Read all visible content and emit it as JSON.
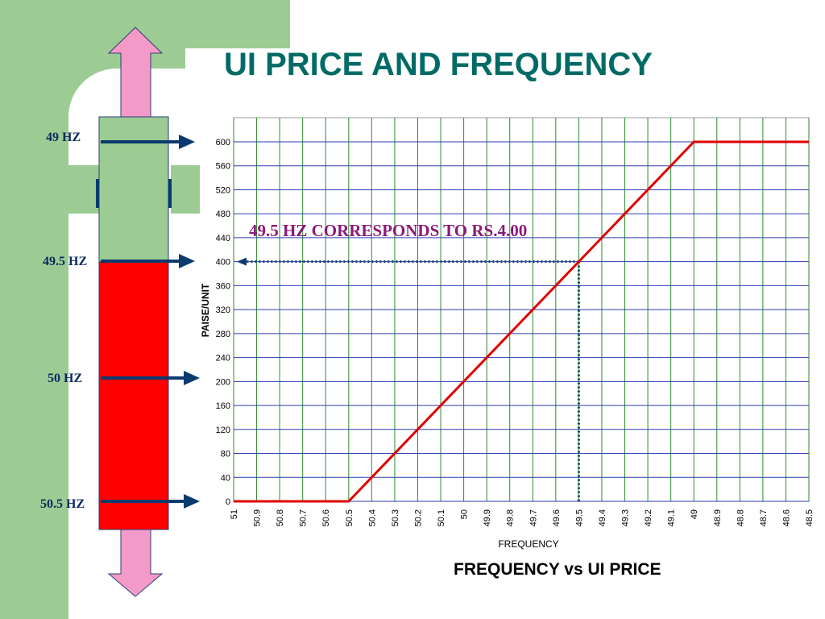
{
  "slide": {
    "title": "UI PRICE AND FREQUENCY",
    "colors": {
      "title": "#006b66",
      "green_panel": "#9ccc94",
      "pink_arrow": "#f49ac8",
      "arrow_blue": "#0a3a6e",
      "band_green": "#9ccc94",
      "band_red": "#ff0000"
    }
  },
  "side_scale": {
    "labels": [
      "49 HZ",
      "49.5 HZ",
      "50 HZ",
      "50.5 HZ"
    ]
  },
  "annotation": "49.5 HZ CORRESPONDS TO RS.4.00",
  "chart_title": "FREQUENCY vs UI PRICE",
  "chart_data": {
    "type": "line",
    "title": "FREQUENCY vs UI PRICE",
    "xlabel": "FREQUENCY",
    "ylabel": "PAISE/UNIT",
    "x_ticks": [
      "51",
      "50.9",
      "50.8",
      "50.7",
      "50.6",
      "50.5",
      "50.4",
      "50.3",
      "50.2",
      "50.1",
      "50",
      "49.9",
      "49.8",
      "49.7",
      "49.6",
      "49.5",
      "49.4",
      "49.3",
      "49.2",
      "49.1",
      "49",
      "48.9",
      "48.8",
      "48.7",
      "48.6",
      "48.5"
    ],
    "y_ticks": [
      0,
      40,
      80,
      120,
      160,
      200,
      240,
      280,
      320,
      360,
      400,
      440,
      480,
      520,
      560,
      600
    ],
    "ylim": [
      0,
      600
    ],
    "xlim": [
      51,
      48.5
    ],
    "x_reversed": true,
    "grid": true,
    "series": [
      {
        "color": "#e00000",
        "points": [
          [
            51,
            0
          ],
          [
            50.5,
            0
          ],
          [
            49,
            600
          ],
          [
            48.5,
            600
          ]
        ]
      }
    ],
    "reference": {
      "x": 49.5,
      "y": 400,
      "color": "#0a3a6e",
      "style": "dotted"
    }
  }
}
